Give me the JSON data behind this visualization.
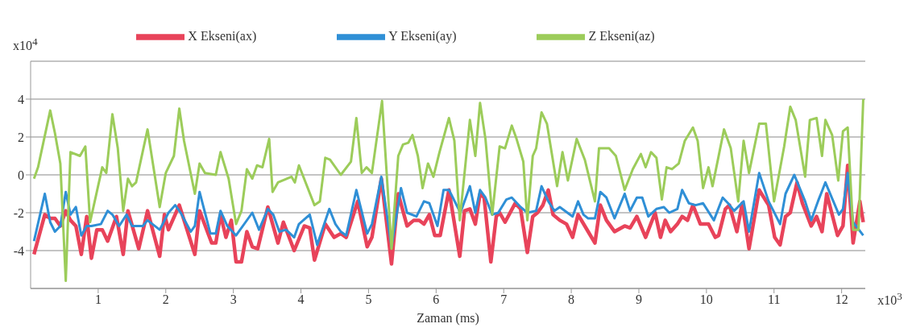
{
  "chart_data": {
    "type": "line",
    "xlabel": "Zaman (ms)",
    "annotations": [
      "x10$^{4}$",
      "x10$^{3}$"
    ],
    "xlim": [
      0,
      12.35
    ],
    "xticks": [
      1,
      2,
      3,
      4,
      5,
      6,
      7,
      8,
      9,
      10,
      11,
      12
    ],
    "ylim": [
      -6,
      6
    ],
    "yticks": [
      -4,
      -2,
      0,
      2,
      4
    ],
    "grid": "y",
    "legend": "top",
    "marker": "none",
    "line_style": "solid",
    "series": [
      {
        "name": "X Ekseni(ax)",
        "color": "#e8435a",
        "x": [
          0.05,
          0.21,
          0.29,
          0.36,
          0.44,
          0.52,
          0.59,
          0.67,
          0.75,
          0.83,
          0.9,
          0.98,
          1.06,
          1.14,
          1.27,
          1.37,
          1.44,
          1.6,
          1.73,
          1.91,
          1.98,
          2.04,
          2.2,
          2.43,
          2.5,
          2.68,
          2.74,
          2.81,
          2.89,
          2.97,
          3.04,
          3.12,
          3.2,
          3.28,
          3.36,
          3.51,
          3.66,
          3.74,
          3.9,
          4.05,
          4.13,
          4.2,
          4.36,
          4.49,
          4.59,
          4.67,
          4.84,
          4.98,
          5.05,
          5.19,
          5.34,
          5.44,
          5.57,
          5.67,
          5.75,
          5.82,
          5.9,
          5.98,
          6.06,
          6.19,
          6.35,
          6.42,
          6.5,
          6.58,
          6.65,
          6.71,
          6.81,
          6.89,
          6.94,
          7.02,
          7.17,
          7.25,
          7.35,
          7.43,
          7.5,
          7.58,
          7.66,
          7.73,
          7.83,
          7.93,
          8.02,
          8.1,
          8.25,
          8.35,
          8.43,
          8.52,
          8.64,
          8.79,
          8.87,
          8.97,
          9.1,
          9.24,
          9.32,
          9.39,
          9.47,
          9.57,
          9.64,
          9.72,
          9.8,
          9.91,
          10.03,
          10.13,
          10.18,
          10.28,
          10.34,
          10.45,
          10.53,
          10.63,
          10.78,
          10.92,
          11.01,
          11.09,
          11.17,
          11.24,
          11.34,
          11.42,
          11.55,
          11.63,
          11.71,
          11.78,
          11.94,
          12.02,
          12.09,
          12.17,
          12.27,
          12.32
        ],
        "values": [
          -4.2,
          -2.1,
          -2.3,
          -2.3,
          -2.7,
          -1.9,
          -2.4,
          -2.7,
          -4.2,
          -2.2,
          -4.4,
          -2.9,
          -2.9,
          -3.5,
          -2.2,
          -4.2,
          -1.9,
          -3.9,
          -1.9,
          -4.3,
          -2.1,
          -2.9,
          -1.6,
          -4.2,
          -1.9,
          -3.6,
          -3.6,
          -2.1,
          -3.3,
          -2.4,
          -4.6,
          -4.6,
          -3.0,
          -3.8,
          -3.9,
          -1.7,
          -3.6,
          -2.5,
          -4.0,
          -2.7,
          -2.8,
          -4.5,
          -2.6,
          -3.3,
          -3.1,
          -3.3,
          -1.4,
          -3.8,
          -3.3,
          -0.2,
          -4.7,
          -1.0,
          -2.7,
          -2.4,
          -2.4,
          -2.6,
          -2.1,
          -3.2,
          -3.2,
          -0.8,
          -4.3,
          -1.9,
          -1.8,
          -2.6,
          -1.0,
          -1.2,
          -4.6,
          -2.2,
          -2.0,
          -2.5,
          -1.5,
          -1.8,
          -4.1,
          -2.2,
          -2.0,
          -1.6,
          -0.8,
          -2.1,
          -2.4,
          -2.6,
          -3.3,
          -2.1,
          -3.0,
          -3.6,
          -1.6,
          -2.4,
          -3.0,
          -2.7,
          -2.8,
          -2.2,
          -3.3,
          -2.0,
          -3.3,
          -2.4,
          -3.0,
          -2.6,
          -2.2,
          -2.4,
          -1.6,
          -2.6,
          -2.6,
          -3.3,
          -3.2,
          -1.8,
          -1.6,
          -3.0,
          -1.5,
          -3.9,
          -0.8,
          -1.6,
          -3.3,
          -3.7,
          -2.2,
          -2.0,
          -0.4,
          -1.5,
          -2.7,
          -2.2,
          -3.0,
          -1.0,
          -3.2,
          -2.7,
          0.5,
          -3.6,
          -1.4,
          -2.5
        ]
      },
      {
        "name": "Y Ekseni(ay)",
        "color": "#2f8fd6",
        "x": [
          0.05,
          0.21,
          0.29,
          0.36,
          0.44,
          0.52,
          0.59,
          0.67,
          0.75,
          0.83,
          0.9,
          1.04,
          1.14,
          1.21,
          1.31,
          1.42,
          1.5,
          1.66,
          1.73,
          1.91,
          2.04,
          2.14,
          2.22,
          2.37,
          2.43,
          2.5,
          2.58,
          2.66,
          2.74,
          2.81,
          2.91,
          3.04,
          3.18,
          3.28,
          3.38,
          3.51,
          3.59,
          3.68,
          3.78,
          3.9,
          3.97,
          4.13,
          4.24,
          4.42,
          4.51,
          4.59,
          4.67,
          4.82,
          4.98,
          5.05,
          5.19,
          5.34,
          5.48,
          5.57,
          5.71,
          5.82,
          5.9,
          6.02,
          6.11,
          6.19,
          6.36,
          6.44,
          6.5,
          6.58,
          6.65,
          6.73,
          6.83,
          6.92,
          7.04,
          7.12,
          7.25,
          7.35,
          7.48,
          7.56,
          7.66,
          7.75,
          7.83,
          8.02,
          8.1,
          8.18,
          8.25,
          8.35,
          8.43,
          8.52,
          8.64,
          8.79,
          8.87,
          8.97,
          9.05,
          9.14,
          9.26,
          9.37,
          9.45,
          9.57,
          9.64,
          9.74,
          9.84,
          9.95,
          10.11,
          10.24,
          10.32,
          10.41,
          10.55,
          10.63,
          10.78,
          10.92,
          11.09,
          11.17,
          11.3,
          11.46,
          11.55,
          11.65,
          11.76,
          11.96,
          12.02,
          12.09,
          12.17,
          12.32
        ],
        "values": [
          -3.5,
          -1.0,
          -2.5,
          -3.0,
          -2.7,
          -0.9,
          -2.1,
          -1.7,
          -3.2,
          -2.7,
          -2.7,
          -2.6,
          -1.9,
          -2.1,
          -2.7,
          -2.1,
          -2.7,
          -2.7,
          -2.4,
          -2.9,
          -2.0,
          -1.6,
          -2.0,
          -3.0,
          -2.7,
          -0.9,
          -2.0,
          -3.1,
          -3.1,
          -1.9,
          -2.7,
          -3.2,
          -2.5,
          -2.0,
          -2.9,
          -1.8,
          -2.1,
          -3.0,
          -2.9,
          -3.3,
          -2.6,
          -2.1,
          -3.7,
          -1.8,
          -2.6,
          -3.0,
          -3.2,
          -0.8,
          -3.1,
          -2.6,
          -0.1,
          -3.8,
          -0.7,
          -2.0,
          -2.2,
          -1.4,
          -1.5,
          -2.7,
          -0.8,
          -0.8,
          -2.0,
          -1.2,
          -0.6,
          -2.0,
          -0.8,
          -1.2,
          -2.1,
          -2.0,
          -1.3,
          -1.2,
          -1.7,
          -2.0,
          -1.9,
          -0.6,
          -1.4,
          -1.9,
          -1.7,
          -2.2,
          -1.4,
          -2.1,
          -2.3,
          -2.3,
          -0.9,
          -1.2,
          -2.3,
          -1.0,
          -1.9,
          -1.2,
          -1.2,
          -2.2,
          -1.8,
          -1.7,
          -2.0,
          -1.8,
          -0.8,
          -1.5,
          -1.6,
          -1.5,
          -2.4,
          -1.2,
          -1.5,
          -1.9,
          -1.4,
          -3.0,
          0.1,
          -1.4,
          -2.6,
          -1.0,
          0.0,
          -1.4,
          -2.4,
          -1.4,
          -0.4,
          -2.1,
          -1.8,
          0.1,
          -2.5,
          -3.2
        ]
      },
      {
        "name": "Z Ekseni(az)",
        "color": "#9ccc5a",
        "x": [
          0.05,
          0.11,
          0.29,
          0.36,
          0.44,
          0.52,
          0.59,
          0.73,
          0.81,
          0.88,
          1.06,
          1.12,
          1.21,
          1.29,
          1.37,
          1.44,
          1.5,
          1.56,
          1.73,
          1.91,
          2.0,
          2.12,
          2.2,
          2.27,
          2.43,
          2.5,
          2.58,
          2.74,
          2.81,
          2.93,
          3.04,
          3.12,
          3.2,
          3.28,
          3.35,
          3.43,
          3.53,
          3.58,
          3.66,
          3.86,
          3.91,
          3.97,
          4.2,
          4.28,
          4.36,
          4.43,
          4.59,
          4.74,
          4.82,
          4.9,
          4.97,
          5.05,
          5.2,
          5.34,
          5.44,
          5.51,
          5.59,
          5.65,
          5.73,
          5.8,
          5.88,
          5.96,
          6.05,
          6.19,
          6.27,
          6.35,
          6.5,
          6.58,
          6.65,
          6.73,
          6.83,
          6.94,
          7.02,
          7.12,
          7.19,
          7.29,
          7.35,
          7.43,
          7.48,
          7.56,
          7.64,
          7.79,
          7.87,
          7.95,
          8.08,
          8.2,
          8.35,
          8.41,
          8.56,
          8.66,
          8.79,
          8.91,
          9.03,
          9.1,
          9.18,
          9.26,
          9.34,
          9.41,
          9.49,
          9.59,
          9.68,
          9.8,
          9.87,
          9.95,
          10.03,
          10.09,
          10.26,
          10.36,
          10.47,
          10.55,
          10.63,
          10.78,
          10.88,
          11.0,
          11.15,
          11.24,
          11.32,
          11.46,
          11.53,
          11.63,
          11.71,
          11.76,
          11.86,
          11.95,
          12.02,
          12.09,
          12.17,
          12.25,
          12.32
        ],
        "values": [
          -0.2,
          0.4,
          3.4,
          2.2,
          0.6,
          -5.6,
          1.2,
          1.0,
          1.5,
          -2.5,
          0.4,
          0.1,
          3.2,
          1.4,
          -1.9,
          -0.2,
          -0.6,
          -0.4,
          2.4,
          -1.7,
          0.1,
          1.0,
          3.5,
          1.8,
          -1.0,
          0.6,
          0.1,
          0.0,
          1.2,
          -0.2,
          -2.6,
          -1.9,
          0.3,
          -0.2,
          0.5,
          0.4,
          1.9,
          -0.9,
          -0.4,
          -0.1,
          -0.4,
          0.5,
          -1.6,
          -1.4,
          0.9,
          0.8,
          0.0,
          0.7,
          3.0,
          0.1,
          0.4,
          0.1,
          3.9,
          -3.9,
          1.0,
          1.6,
          1.7,
          2.1,
          1.0,
          -0.7,
          0.6,
          -0.1,
          1.2,
          3.0,
          1.8,
          -2.4,
          2.9,
          1.0,
          3.8,
          1.9,
          -2.1,
          1.5,
          1.4,
          2.6,
          1.9,
          0.7,
          -2.4,
          1.0,
          1.4,
          3.3,
          2.7,
          -0.6,
          1.2,
          -0.3,
          1.9,
          0.8,
          -1.4,
          1.4,
          1.4,
          1.0,
          -0.8,
          0.3,
          1.1,
          0.4,
          1.2,
          0.9,
          -1.3,
          0.4,
          0.3,
          0.6,
          1.8,
          2.5,
          1.8,
          -0.7,
          0.4,
          -0.6,
          2.4,
          1.4,
          -1.4,
          1.8,
          0.1,
          2.7,
          2.7,
          -1.4,
          1.5,
          3.6,
          2.9,
          -0.1,
          2.9,
          3.0,
          1.0,
          2.9,
          2.1,
          -0.3,
          2.3,
          2.5,
          -2.9,
          -2.9,
          4.0
        ]
      }
    ]
  }
}
